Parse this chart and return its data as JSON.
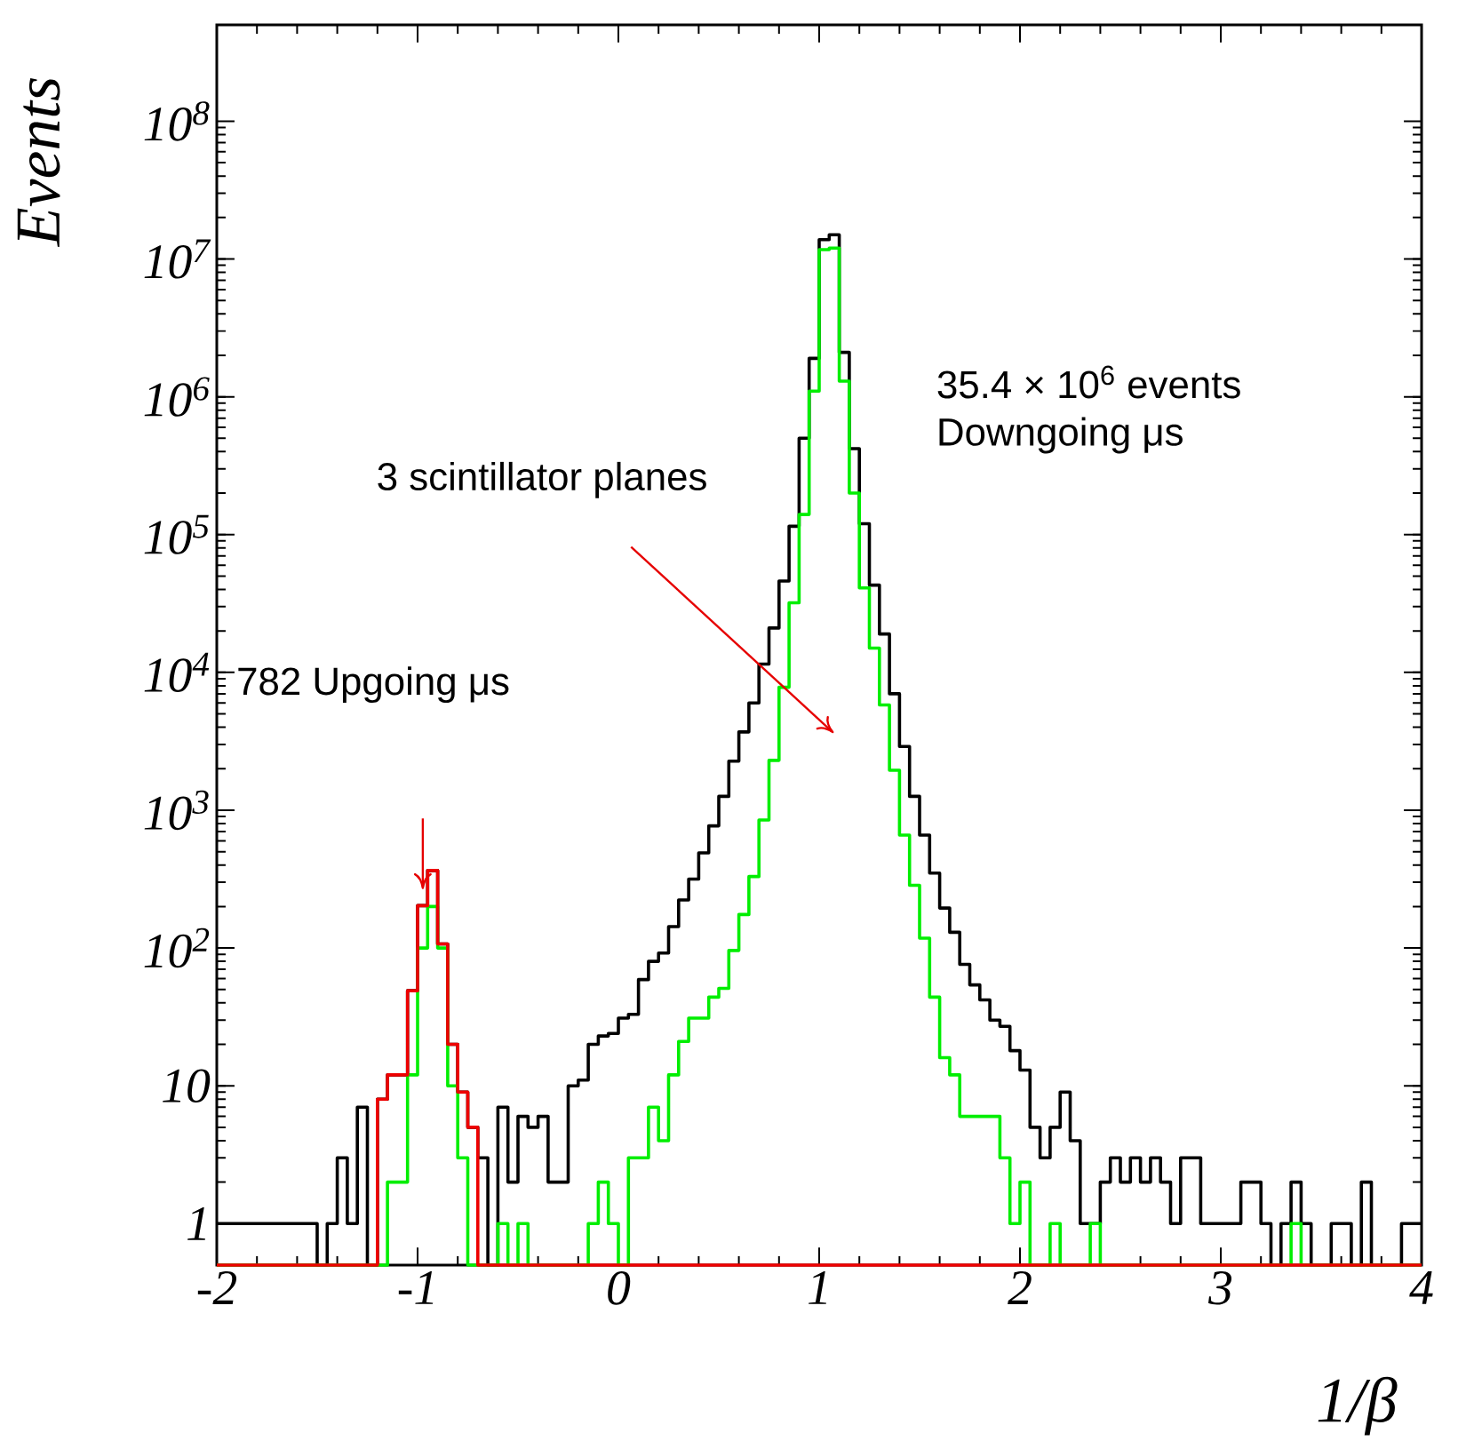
{
  "chart_data": {
    "type": "histogram",
    "xlabel": "1/β",
    "ylabel": "Events",
    "xlim": [
      -2,
      4
    ],
    "xticks": [
      -2,
      -1,
      0,
      1,
      2,
      3,
      4
    ],
    "ylim": [
      0.5,
      500000000
    ],
    "log": "y",
    "yticks": [
      1,
      10,
      {
        "value": 100,
        "label": "10$^{2}$"
      },
      {
        "value": 1000,
        "label": "10$^{3}$"
      },
      {
        "value": 10000,
        "label": "10$^{4}$"
      },
      {
        "value": 100000,
        "label": "10$^{5}$"
      },
      {
        "value": 1000000,
        "label": "10$^{6}$"
      },
      {
        "value": 10000000,
        "label": "10$^{7}$"
      },
      {
        "value": 100000000,
        "label": "10$^{8}$"
      }
    ],
    "bins": [
      -2,
      -1.95,
      -1.9,
      -1.85,
      -1.8,
      -1.75,
      -1.7,
      -1.65,
      -1.6,
      -1.55,
      -1.5,
      -1.45,
      -1.4,
      -1.35,
      -1.3,
      -1.25,
      -1.2,
      -1.15,
      -1.1,
      -1.05,
      -1,
      -0.95,
      -0.9,
      -0.85,
      -0.8,
      -0.75,
      -0.7,
      -0.65,
      -0.6,
      -0.55,
      -0.5,
      -0.45,
      -0.4,
      -0.35,
      -0.3,
      -0.25,
      -0.2,
      -0.15,
      -0.1,
      -0.05,
      0,
      0.05,
      0.1,
      0.15,
      0.2,
      0.25,
      0.3,
      0.35,
      0.4,
      0.45,
      0.5,
      0.55,
      0.6,
      0.65,
      0.7,
      0.75,
      0.8,
      0.85,
      0.9,
      0.95,
      1,
      1.05,
      1.1,
      1.15,
      1.2,
      1.25,
      1.3,
      1.35,
      1.4,
      1.45,
      1.5,
      1.55,
      1.6,
      1.65,
      1.7,
      1.75,
      1.8,
      1.85,
      1.9,
      1.95,
      2,
      2.05,
      2.1,
      2.15,
      2.2,
      2.25,
      2.3,
      2.35,
      2.4,
      2.45,
      2.5,
      2.55,
      2.6,
      2.65,
      2.7,
      2.75,
      2.8,
      2.85,
      2.9,
      2.95,
      3,
      3.05,
      3.1,
      3.15,
      3.2,
      3.25,
      3.3,
      3.35,
      3.4,
      3.45,
      3.5,
      3.55,
      3.6,
      3.65,
      3.7,
      3.75,
      3.8,
      3.85,
      3.9,
      3.95,
      4
    ],
    "series": [
      {
        "color": "#000000",
        "values": [
          1,
          1,
          1,
          1,
          1,
          1,
          1,
          1,
          1,
          1,
          null,
          1,
          3,
          1,
          7,
          null,
          8,
          12,
          12,
          49,
          203,
          365,
          107,
          20,
          9,
          5,
          3,
          null,
          7,
          2,
          6,
          5,
          6,
          2,
          2,
          10,
          11,
          20,
          23,
          24,
          31,
          33,
          59,
          80,
          92,
          143,
          223,
          316,
          490,
          770,
          1260,
          2270,
          3700,
          6000,
          11500,
          21000,
          46000,
          115000,
          500000,
          1900000,
          13800000,
          15000000,
          2100000,
          420000,
          120000,
          43000,
          19000,
          7000,
          2900,
          1260,
          660,
          350,
          195,
          130,
          76,
          54,
          42,
          30,
          27,
          18,
          13,
          5,
          3,
          5,
          9,
          4,
          1,
          1,
          2,
          3,
          2,
          3,
          2,
          3,
          2,
          1,
          3,
          3,
          1,
          1,
          1,
          1,
          2,
          2,
          1,
          null,
          1,
          2,
          1,
          null,
          null,
          1,
          1,
          null,
          2,
          null,
          null,
          null,
          1,
          1
        ]
      },
      {
        "color": "#00ee00",
        "values": [
          null,
          null,
          null,
          null,
          null,
          null,
          null,
          null,
          null,
          null,
          null,
          null,
          null,
          null,
          null,
          null,
          null,
          2,
          2,
          12,
          100,
          200,
          100,
          10,
          3,
          null,
          null,
          null,
          1,
          null,
          1,
          null,
          null,
          null,
          null,
          null,
          null,
          1,
          2,
          1,
          null,
          3,
          3,
          7,
          4,
          12,
          21,
          31,
          31,
          44,
          51,
          96,
          175,
          330,
          850,
          2300,
          7800,
          32000,
          140000,
          1100000,
          11700000,
          12000000,
          1300000,
          200000,
          41000,
          15000,
          5800,
          1950,
          660,
          285,
          118,
          44,
          16,
          12,
          6,
          6,
          6,
          6,
          3,
          1,
          2,
          null,
          null,
          1,
          null,
          null,
          null,
          1,
          null,
          null,
          null,
          null,
          null,
          null,
          null,
          null,
          null,
          null,
          null,
          null,
          null,
          null,
          null,
          null,
          null,
          null,
          null,
          1,
          null,
          null,
          null,
          null,
          null,
          null,
          null,
          null,
          null,
          null,
          null,
          null
        ]
      },
      {
        "color": "#ee0000",
        "values": [
          null,
          null,
          null,
          null,
          null,
          null,
          null,
          null,
          null,
          null,
          null,
          null,
          null,
          null,
          null,
          null,
          8,
          12,
          12,
          49,
          203,
          365,
          107,
          20,
          9,
          5,
          null,
          null,
          null,
          null,
          null,
          null,
          null,
          null,
          null,
          null,
          null,
          null,
          null,
          null,
          null,
          null,
          null,
          null,
          null,
          null,
          null,
          null,
          null,
          null,
          null,
          null,
          null,
          null,
          null,
          null,
          null,
          null,
          null,
          null,
          null,
          null,
          null,
          null,
          null,
          null,
          null,
          null,
          null,
          null,
          null,
          null,
          null,
          null,
          null,
          null,
          null,
          null,
          null,
          null,
          null,
          null,
          null,
          null,
          null,
          null,
          null,
          null,
          null,
          null,
          null,
          null,
          null,
          null,
          null,
          null,
          null,
          null,
          null,
          null,
          null,
          null,
          null,
          null,
          null,
          null,
          null,
          null,
          null,
          null,
          null,
          null,
          null,
          null,
          null,
          null,
          null,
          null,
          null,
          null
        ]
      }
    ],
    "annotations": [
      "3 scintillator planes",
      "782 Upgoing μs",
      "35.4 × 10$^{6}$ events",
      "Downgoing μs"
    ]
  }
}
